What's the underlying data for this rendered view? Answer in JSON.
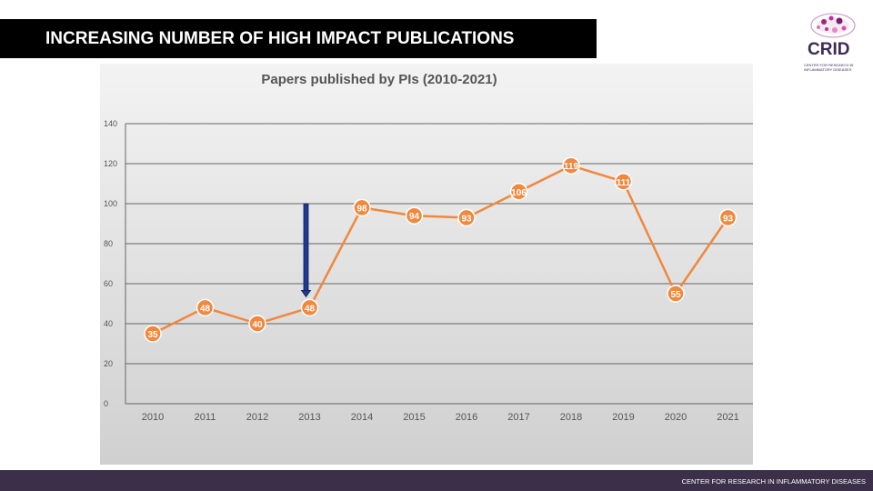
{
  "slide": {
    "title": "INCREASING NUMBER OF HIGH IMPACT PUBLICATIONS",
    "footer": "CENTER FOR RESEARCH IN INFLAMMATORY DISEASES"
  },
  "logo": {
    "word": "CRID",
    "subtitle": "CENTER FOR RESEARCH IN INFLAMMATORY DISEASES"
  },
  "colors": {
    "title_bg": "#000000",
    "footer_bg": "#3b2f4a",
    "line": "#f0883e",
    "arrow": "#1f3a8f",
    "logo": "#3d2a55"
  },
  "chart_data": {
    "type": "line",
    "title": "Papers published by PIs (2010-2021)",
    "categories": [
      "2010",
      "2011",
      "2012",
      "2013",
      "2014",
      "2015",
      "2016",
      "2017",
      "2018",
      "2019",
      "2020",
      "2021"
    ],
    "values": [
      35,
      48,
      40,
      48,
      98,
      94,
      93,
      106,
      119,
      111,
      55,
      93
    ],
    "ylim": [
      0,
      140
    ],
    "yticks": [
      "0",
      "20",
      "40",
      "60",
      "80",
      "100",
      "120",
      "140"
    ],
    "grid": true,
    "data_labels": true,
    "annotation": {
      "type": "down-arrow",
      "category": "2013",
      "from_value": 100
    }
  }
}
